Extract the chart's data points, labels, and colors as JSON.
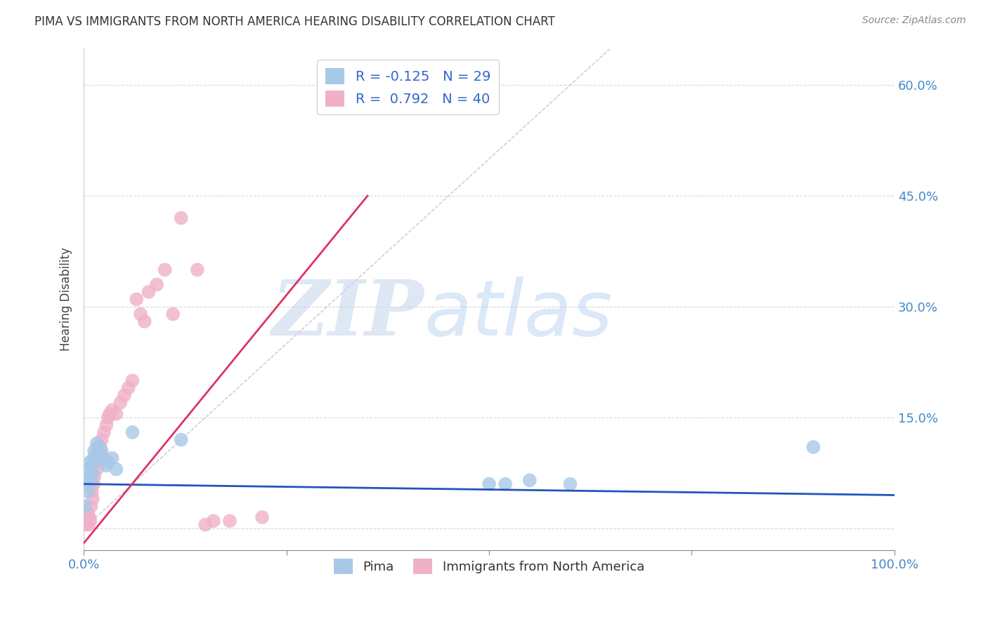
{
  "title": "PIMA VS IMMIGRANTS FROM NORTH AMERICA HEARING DISABILITY CORRELATION CHART",
  "source": "Source: ZipAtlas.com",
  "ylabel": "Hearing Disability",
  "xlim": [
    0,
    1.0
  ],
  "ylim": [
    -0.03,
    0.65
  ],
  "background_color": "#ffffff",
  "grid_color": "#d8d8d8",
  "watermark_zip": "ZIP",
  "watermark_atlas": "atlas",
  "pima_R": -0.125,
  "pima_N": 29,
  "immigrant_R": 0.792,
  "immigrant_N": 40,
  "pima_color": "#a8c8e8",
  "immigrant_color": "#f0b0c8",
  "pima_line_color": "#2255bb",
  "immigrant_line_color": "#dd3366",
  "diagonal_color": "#bbbbbb",
  "pima_x": [
    0.002,
    0.004,
    0.005,
    0.006,
    0.007,
    0.008,
    0.009,
    0.01,
    0.011,
    0.012,
    0.013,
    0.014,
    0.015,
    0.016,
    0.018,
    0.02,
    0.022,
    0.025,
    0.028,
    0.03,
    0.035,
    0.04,
    0.06,
    0.12,
    0.5,
    0.52,
    0.55,
    0.6,
    0.9
  ],
  "pima_y": [
    0.03,
    0.06,
    0.05,
    0.08,
    0.07,
    0.09,
    0.065,
    0.085,
    0.075,
    0.095,
    0.105,
    0.095,
    0.1,
    0.115,
    0.11,
    0.1,
    0.105,
    0.095,
    0.085,
    0.09,
    0.095,
    0.08,
    0.13,
    0.12,
    0.06,
    0.06,
    0.065,
    0.06,
    0.11
  ],
  "immigrant_x": [
    0.002,
    0.003,
    0.004,
    0.005,
    0.006,
    0.007,
    0.008,
    0.009,
    0.01,
    0.011,
    0.012,
    0.013,
    0.015,
    0.016,
    0.018,
    0.02,
    0.022,
    0.025,
    0.028,
    0.03,
    0.032,
    0.035,
    0.04,
    0.045,
    0.05,
    0.055,
    0.06,
    0.065,
    0.07,
    0.075,
    0.08,
    0.09,
    0.1,
    0.11,
    0.12,
    0.14,
    0.15,
    0.16,
    0.18,
    0.22
  ],
  "immigrant_y": [
    0.005,
    0.01,
    0.015,
    0.02,
    0.005,
    0.015,
    0.01,
    0.03,
    0.05,
    0.04,
    0.06,
    0.07,
    0.09,
    0.08,
    0.1,
    0.11,
    0.12,
    0.13,
    0.14,
    0.15,
    0.155,
    0.16,
    0.155,
    0.17,
    0.18,
    0.19,
    0.2,
    0.31,
    0.29,
    0.28,
    0.32,
    0.33,
    0.35,
    0.29,
    0.42,
    0.35,
    0.005,
    0.01,
    0.01,
    0.015
  ],
  "pima_line_x": [
    0.0,
    1.0
  ],
  "pima_line_y": [
    0.06,
    0.045
  ],
  "imm_line_x": [
    0.0,
    0.35
  ],
  "imm_line_y": [
    -0.02,
    0.45
  ]
}
